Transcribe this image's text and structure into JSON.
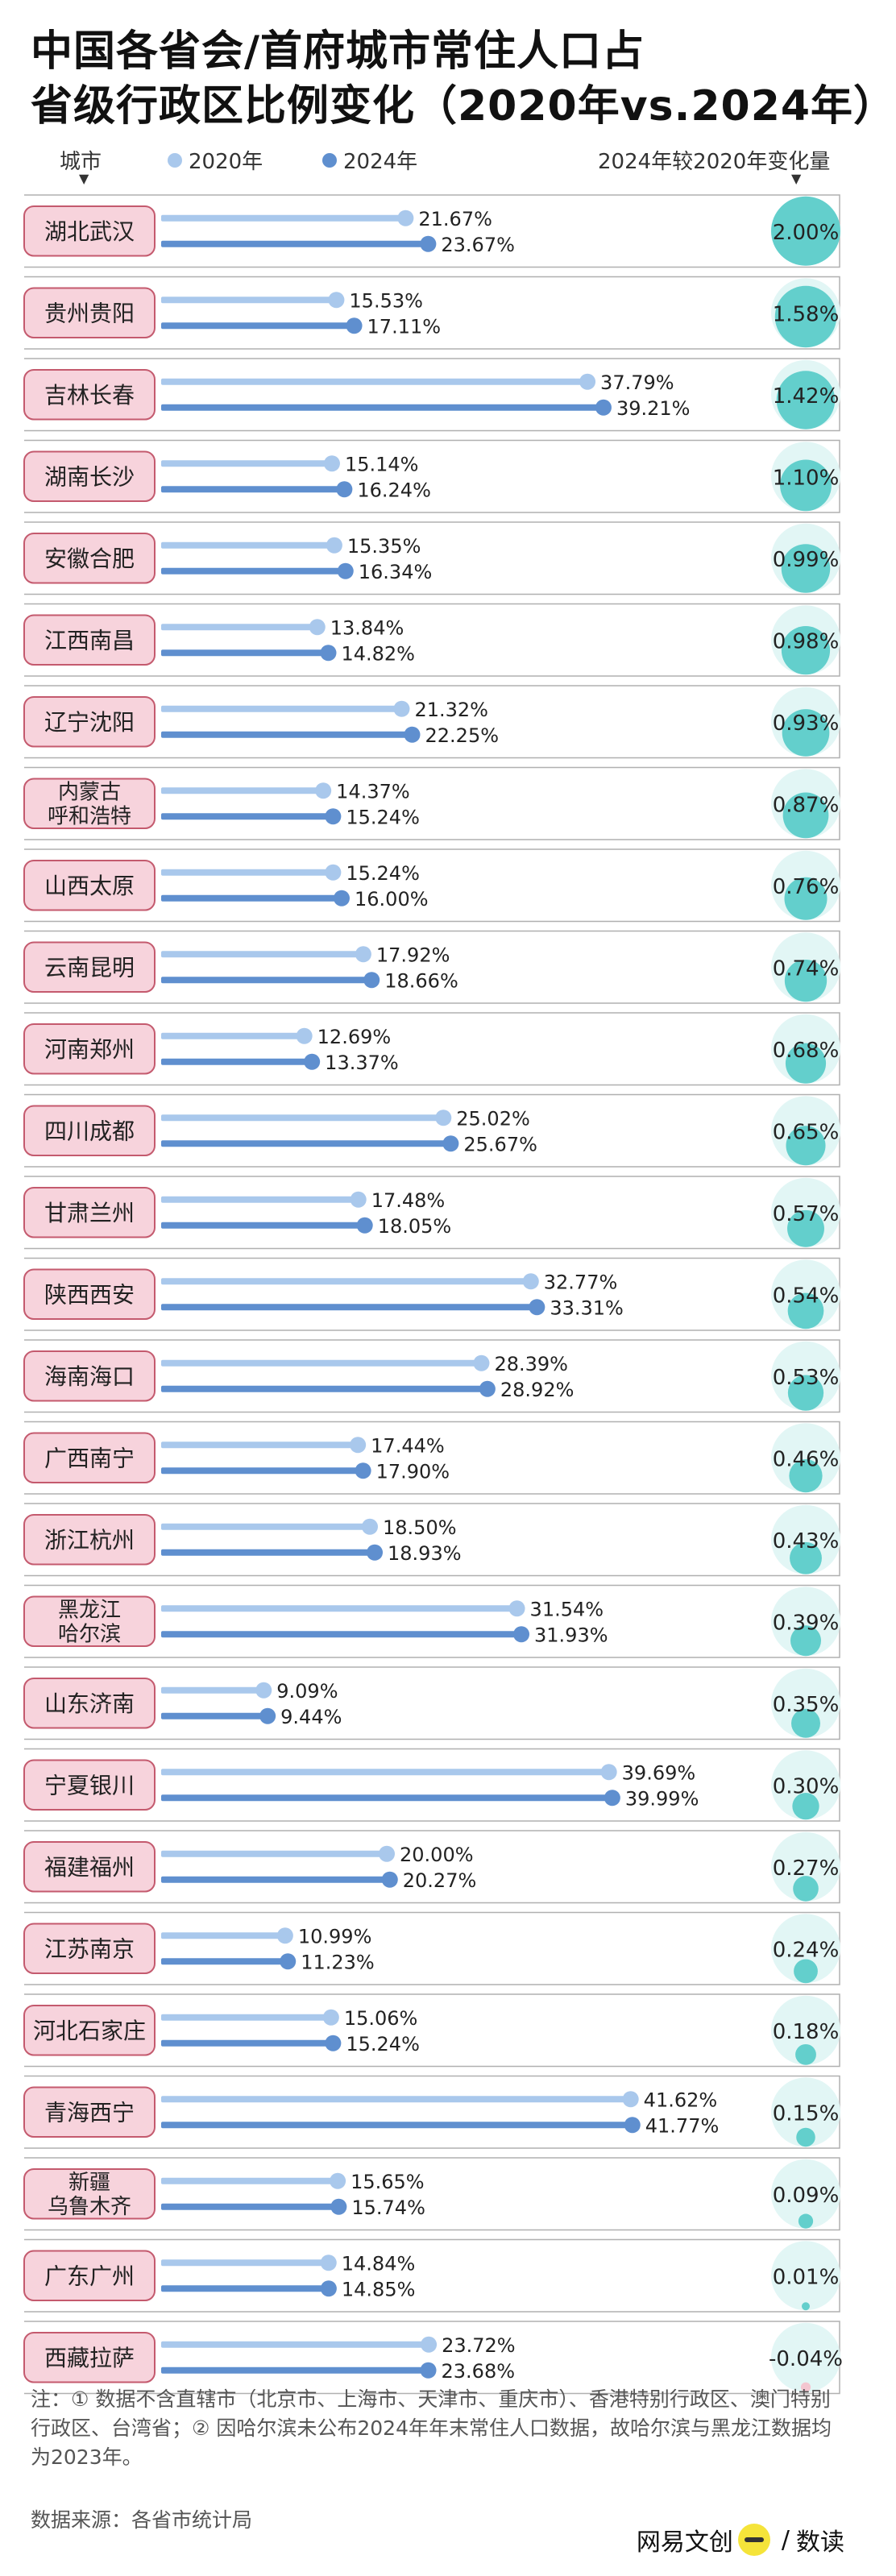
{
  "title": {
    "line1": "中国各省会/首府城市常住人口占",
    "line2": "省级行政区比例变化（2020年vs.2024年）"
  },
  "legend": {
    "city_label": "城市",
    "series_2020": "2020年",
    "series_2024": "2024年",
    "change_label": "2024年较2020年变化量"
  },
  "colors": {
    "series_2020": "#a9c8ec",
    "series_2024": "#5f8fcf",
    "label_fill": "#f7d3dc",
    "label_border": "#c45a6e",
    "circle_fill": "#63cfcc",
    "circle_bg": "#e2f6f5",
    "negative_fill": "#f4c6d0",
    "grid": "#b0b0b0"
  },
  "chart_data": {
    "type": "bar",
    "xlim": [
      0,
      45
    ],
    "x_unit": "%",
    "categories": [
      {
        "label": [
          "湖北武汉"
        ],
        "v2020": 21.67,
        "v2024": 23.67,
        "change": 2.0
      },
      {
        "label": [
          "贵州贵阳"
        ],
        "v2020": 15.53,
        "v2024": 17.11,
        "change": 1.58
      },
      {
        "label": [
          "吉林长春"
        ],
        "v2020": 37.79,
        "v2024": 39.21,
        "change": 1.42
      },
      {
        "label": [
          "湖南长沙"
        ],
        "v2020": 15.14,
        "v2024": 16.24,
        "change": 1.1
      },
      {
        "label": [
          "安徽合肥"
        ],
        "v2020": 15.35,
        "v2024": 16.34,
        "change": 0.99
      },
      {
        "label": [
          "江西南昌"
        ],
        "v2020": 13.84,
        "v2024": 14.82,
        "change": 0.98
      },
      {
        "label": [
          "辽宁沈阳"
        ],
        "v2020": 21.32,
        "v2024": 22.25,
        "change": 0.93
      },
      {
        "label": [
          "内蒙古",
          "呼和浩特"
        ],
        "v2020": 14.37,
        "v2024": 15.24,
        "change": 0.87
      },
      {
        "label": [
          "山西太原"
        ],
        "v2020": 15.24,
        "v2024": 16.0,
        "change": 0.76
      },
      {
        "label": [
          "云南昆明"
        ],
        "v2020": 17.92,
        "v2024": 18.66,
        "change": 0.74
      },
      {
        "label": [
          "河南郑州"
        ],
        "v2020": 12.69,
        "v2024": 13.37,
        "change": 0.68
      },
      {
        "label": [
          "四川成都"
        ],
        "v2020": 25.02,
        "v2024": 25.67,
        "change": 0.65
      },
      {
        "label": [
          "甘肃兰州"
        ],
        "v2020": 17.48,
        "v2024": 18.05,
        "change": 0.57
      },
      {
        "label": [
          "陕西西安"
        ],
        "v2020": 32.77,
        "v2024": 33.31,
        "change": 0.54
      },
      {
        "label": [
          "海南海口"
        ],
        "v2020": 28.39,
        "v2024": 28.92,
        "change": 0.53
      },
      {
        "label": [
          "广西南宁"
        ],
        "v2020": 17.44,
        "v2024": 17.9,
        "change": 0.46
      },
      {
        "label": [
          "浙江杭州"
        ],
        "v2020": 18.5,
        "v2024": 18.93,
        "change": 0.43
      },
      {
        "label": [
          "黑龙江",
          "哈尔滨"
        ],
        "v2020": 31.54,
        "v2024": 31.93,
        "change": 0.39
      },
      {
        "label": [
          "山东济南"
        ],
        "v2020": 9.09,
        "v2024": 9.44,
        "change": 0.35
      },
      {
        "label": [
          "宁夏银川"
        ],
        "v2020": 39.69,
        "v2024": 39.99,
        "change": 0.3
      },
      {
        "label": [
          "福建福州"
        ],
        "v2020": 20.0,
        "v2024": 20.27,
        "change": 0.27
      },
      {
        "label": [
          "江苏南京"
        ],
        "v2020": 10.99,
        "v2024": 11.23,
        "change": 0.24
      },
      {
        "label": [
          "河北石家庄"
        ],
        "v2020": 15.06,
        "v2024": 15.24,
        "change": 0.18
      },
      {
        "label": [
          "青海西宁"
        ],
        "v2020": 41.62,
        "v2024": 41.77,
        "change": 0.15
      },
      {
        "label": [
          "新疆",
          "乌鲁木齐"
        ],
        "v2020": 15.65,
        "v2024": 15.74,
        "change": 0.09
      },
      {
        "label": [
          "广东广州"
        ],
        "v2020": 14.84,
        "v2024": 14.85,
        "change": 0.01
      },
      {
        "label": [
          "西藏拉萨"
        ],
        "v2020": 23.72,
        "v2024": 23.68,
        "change": -0.04
      }
    ]
  },
  "footnote": {
    "text": "注：① 数据不含直辖市（北京市、上海市、天津市、重庆市）、香港特别行政区、澳门特别行政区、台湾省；② 因哈尔滨未公布2024年年末常住人口数据，故哈尔滨与黑龙江数据均为2023年。"
  },
  "source": {
    "text": "数据来源：各省市统计局"
  },
  "brand": {
    "left": "网易文创",
    "right": "数读"
  }
}
